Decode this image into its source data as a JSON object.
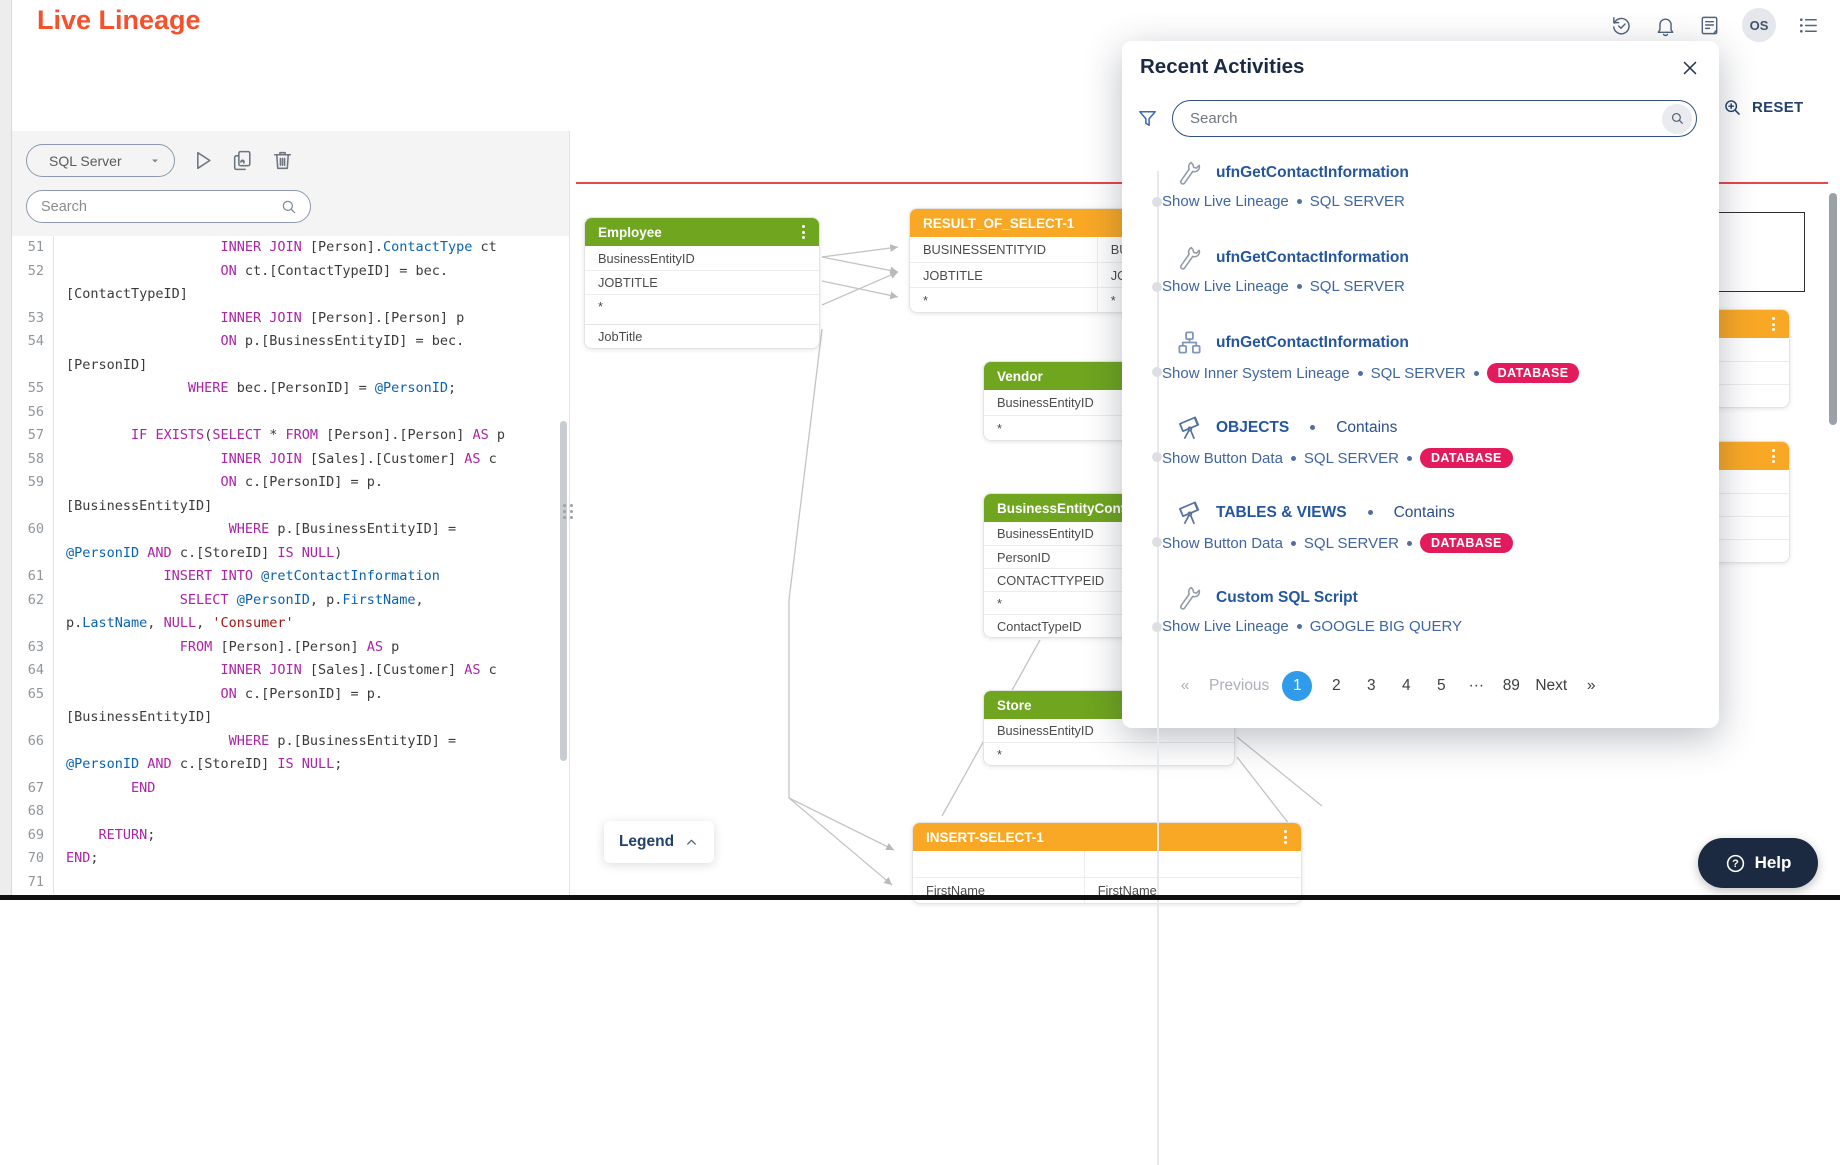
{
  "header": {
    "title": "Live Lineage",
    "avatar_initials": "OS",
    "reset_label": "RESET"
  },
  "left_panel": {
    "datasource": "SQL Server",
    "search_placeholder": "Search",
    "code": [
      {
        "n": "51",
        "s": [
          [
            "d",
            "                   "
          ],
          [
            "k",
            "INNER JOIN"
          ],
          [
            "d",
            " [Person]."
          ],
          [
            "b",
            "ContactType"
          ],
          [
            "d",
            " ct"
          ]
        ]
      },
      {
        "n": "52",
        "s": [
          [
            "d",
            "                   "
          ],
          [
            "k",
            "ON"
          ],
          [
            "d",
            " ct.[ContactTypeID] = bec."
          ]
        ]
      },
      {
        "n": "",
        "s": [
          [
            "d",
            "[ContactTypeID]"
          ]
        ]
      },
      {
        "n": "53",
        "s": [
          [
            "d",
            "                   "
          ],
          [
            "k",
            "INNER JOIN"
          ],
          [
            "d",
            " [Person].[Person] p"
          ]
        ]
      },
      {
        "n": "54",
        "s": [
          [
            "d",
            "                   "
          ],
          [
            "k",
            "ON"
          ],
          [
            "d",
            " p.[BusinessEntityID] = bec."
          ]
        ]
      },
      {
        "n": "",
        "s": [
          [
            "d",
            "[PersonID]"
          ]
        ]
      },
      {
        "n": "55",
        "s": [
          [
            "d",
            "               "
          ],
          [
            "k",
            "WHERE"
          ],
          [
            "d",
            " bec.[PersonID] = "
          ],
          [
            "b",
            "@PersonID"
          ],
          [
            "d",
            ";"
          ]
        ]
      },
      {
        "n": "56",
        "s": []
      },
      {
        "n": "57",
        "s": [
          [
            "d",
            "        "
          ],
          [
            "k",
            "IF"
          ],
          [
            "d",
            " "
          ],
          [
            "k",
            "EXISTS"
          ],
          [
            "d",
            "("
          ],
          [
            "k",
            "SELECT"
          ],
          [
            "d",
            " * "
          ],
          [
            "k",
            "FROM"
          ],
          [
            "d",
            " [Person].[Person] "
          ],
          [
            "k",
            "AS"
          ],
          [
            "d",
            " p"
          ]
        ]
      },
      {
        "n": "58",
        "s": [
          [
            "d",
            "                   "
          ],
          [
            "k",
            "INNER JOIN"
          ],
          [
            "d",
            " [Sales].[Customer] "
          ],
          [
            "k",
            "AS"
          ],
          [
            "d",
            " c"
          ]
        ]
      },
      {
        "n": "59",
        "s": [
          [
            "d",
            "                   "
          ],
          [
            "k",
            "ON"
          ],
          [
            "d",
            " c.[PersonID] = p."
          ]
        ]
      },
      {
        "n": "",
        "s": [
          [
            "d",
            "[BusinessEntityID]"
          ]
        ]
      },
      {
        "n": "60",
        "s": [
          [
            "d",
            "                    "
          ],
          [
            "k",
            "WHERE"
          ],
          [
            "d",
            " p.[BusinessEntityID] ="
          ]
        ]
      },
      {
        "n": "",
        "s": [
          [
            "b",
            "@PersonID"
          ],
          [
            "d",
            " "
          ],
          [
            "k",
            "AND"
          ],
          [
            "d",
            " c.[StoreID] "
          ],
          [
            "k",
            "IS"
          ],
          [
            "d",
            " "
          ],
          [
            "k",
            "NULL"
          ],
          [
            "d",
            ")"
          ]
        ]
      },
      {
        "n": "61",
        "s": [
          [
            "d",
            "            "
          ],
          [
            "k",
            "INSERT"
          ],
          [
            "d",
            " "
          ],
          [
            "k",
            "INTO"
          ],
          [
            "d",
            " "
          ],
          [
            "b",
            "@retContactInformation"
          ]
        ]
      },
      {
        "n": "62",
        "s": [
          [
            "d",
            "              "
          ],
          [
            "k",
            "SELECT"
          ],
          [
            "d",
            " "
          ],
          [
            "b",
            "@PersonID"
          ],
          [
            "d",
            ", p."
          ],
          [
            "b",
            "FirstName"
          ],
          [
            "d",
            ","
          ]
        ]
      },
      {
        "n": "",
        "s": [
          [
            "d",
            "p."
          ],
          [
            "b",
            "LastName"
          ],
          [
            "d",
            ", "
          ],
          [
            "k",
            "NULL"
          ],
          [
            "d",
            ", "
          ],
          [
            "r",
            "'Consumer'"
          ]
        ]
      },
      {
        "n": "63",
        "s": [
          [
            "d",
            "              "
          ],
          [
            "k",
            "FROM"
          ],
          [
            "d",
            " [Person].[Person] "
          ],
          [
            "k",
            "AS"
          ],
          [
            "d",
            " p"
          ]
        ]
      },
      {
        "n": "64",
        "s": [
          [
            "d",
            "                   "
          ],
          [
            "k",
            "INNER JOIN"
          ],
          [
            "d",
            " [Sales].[Customer] "
          ],
          [
            "k",
            "AS"
          ],
          [
            "d",
            " c"
          ]
        ]
      },
      {
        "n": "65",
        "s": [
          [
            "d",
            "                   "
          ],
          [
            "k",
            "ON"
          ],
          [
            "d",
            " c.[PersonID] = p."
          ]
        ]
      },
      {
        "n": "",
        "s": [
          [
            "d",
            "[BusinessEntityID]"
          ]
        ]
      },
      {
        "n": "66",
        "s": [
          [
            "d",
            "                    "
          ],
          [
            "k",
            "WHERE"
          ],
          [
            "d",
            " p.[BusinessEntityID] ="
          ]
        ]
      },
      {
        "n": "",
        "s": [
          [
            "b",
            "@PersonID"
          ],
          [
            "d",
            " "
          ],
          [
            "k",
            "AND"
          ],
          [
            "d",
            " c.[StoreID] "
          ],
          [
            "k",
            "IS"
          ],
          [
            "d",
            " "
          ],
          [
            "k",
            "NULL"
          ],
          [
            "d",
            ";"
          ]
        ]
      },
      {
        "n": "67",
        "s": [
          [
            "d",
            "        "
          ],
          [
            "k",
            "END"
          ]
        ]
      },
      {
        "n": "68",
        "s": []
      },
      {
        "n": "69",
        "s": [
          [
            "d",
            "    "
          ],
          [
            "k",
            "RETURN"
          ],
          [
            "d",
            ";"
          ]
        ]
      },
      {
        "n": "70",
        "s": [
          [
            "k",
            "END"
          ],
          [
            "d",
            ";"
          ]
        ]
      },
      {
        "n": "71",
        "s": []
      }
    ]
  },
  "canvas": {
    "legend_label": "Legend",
    "node_colors": {
      "table": "#6FA51F",
      "transformation": "#F9A826"
    },
    "nodes": [
      {
        "id": "employee",
        "title": "Employee",
        "color": "green",
        "menu": true,
        "gap_before": 3,
        "rows": [
          [
            "BusinessEntityID"
          ],
          [
            "JOBTITLE"
          ],
          [
            "*"
          ],
          [
            "JobTitle"
          ]
        ]
      },
      {
        "id": "result-of-select-1",
        "title": "RESULT_OF_SELECT-1",
        "color": "orange",
        "menu": true,
        "rows": [
          [
            "BUSINESSENTITYID",
            "BUSINESSENTITYID"
          ],
          [
            "JOBTITLE",
            "JOBTITLE"
          ],
          [
            "*",
            "*"
          ]
        ]
      },
      {
        "id": "vendor",
        "title": "Vendor",
        "color": "green",
        "menu": true,
        "rows": [
          [
            "BusinessEntityID"
          ],
          [
            "*"
          ]
        ]
      },
      {
        "id": "business-entity-contact",
        "title": "BusinessEntityContact",
        "color": "green",
        "menu": true,
        "rows": [
          [
            "BusinessEntityID"
          ],
          [
            "PersonID"
          ],
          [
            "CONTACTTYPEID"
          ],
          [
            "*"
          ],
          [
            "ContactTypeID"
          ]
        ]
      },
      {
        "id": "store",
        "title": "Store",
        "color": "green",
        "menu": true,
        "rows": [
          [
            "BusinessEntityID"
          ],
          [
            "*"
          ]
        ]
      },
      {
        "id": "insert-select-1",
        "title": "INSERT-SELECT-1",
        "color": "orange",
        "menu": true,
        "rows": [
          [
            "",
            ""
          ],
          [
            "FirstName",
            "FirstName"
          ]
        ]
      },
      {
        "id": "partial-node-a",
        "title": "",
        "color": "orange",
        "menu": true,
        "rows": [
          [
            ""
          ],
          [
            ""
          ],
          [
            ""
          ]
        ]
      },
      {
        "id": "partial-node-b",
        "title": "",
        "color": "orange",
        "menu": true,
        "rows": [
          [
            ""
          ],
          [
            ""
          ],
          [
            ""
          ],
          [
            ""
          ]
        ]
      }
    ]
  },
  "modal": {
    "title": "Recent Activities",
    "search_placeholder": "Search",
    "items": [
      {
        "icon": "wrench-icon",
        "title": "ufnGetContactInformation",
        "note": null,
        "sub": [
          "Show Live Lineage",
          "SQL SERVER"
        ],
        "badge": null
      },
      {
        "icon": "wrench-icon",
        "title": "ufnGetContactInformation",
        "note": null,
        "sub": [
          "Show Live Lineage",
          "SQL SERVER"
        ],
        "badge": null
      },
      {
        "icon": "hierarchy-icon",
        "title": "ufnGetContactInformation",
        "note": null,
        "sub": [
          "Show Inner System Lineage",
          "SQL SERVER"
        ],
        "badge": "DATABASE"
      },
      {
        "icon": "telescope-icon",
        "title": "OBJECTS",
        "note": "Contains",
        "sub": [
          "Show Button Data",
          "SQL SERVER"
        ],
        "badge": "DATABASE"
      },
      {
        "icon": "telescope-icon",
        "title": "TABLES & VIEWS",
        "note": "Contains",
        "sub": [
          "Show Button Data",
          "SQL SERVER"
        ],
        "badge": "DATABASE"
      },
      {
        "icon": "wrench-icon",
        "title": "Custom SQL Script",
        "note": null,
        "sub": [
          "Show Live Lineage",
          "GOOGLE BIG QUERY"
        ],
        "badge": null
      }
    ],
    "pagination": {
      "prev_arrow": "«",
      "prev": "Previous",
      "pages": [
        "1",
        "2",
        "3",
        "4",
        "5"
      ],
      "active": "1",
      "ellipsis": "···",
      "last_page": "89",
      "next": "Next",
      "next_arrow": "»"
    }
  },
  "help_label": "Help"
}
